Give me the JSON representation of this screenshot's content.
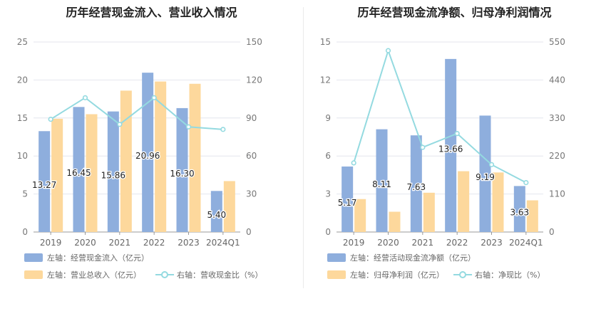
{
  "colors": {
    "bar1": "#8eaedd",
    "bar2": "#fdd89c",
    "line": "#94dae0"
  },
  "chart_data": [
    {
      "type": "bar",
      "title": "历年经营现金流入、营业收入情况",
      "categories": [
        "2019",
        "2020",
        "2021",
        "2022",
        "2023",
        "2024Q1"
      ],
      "ylim_left": [
        0,
        25
      ],
      "yticks_left": [
        "0",
        "5",
        "10",
        "15",
        "20",
        "25"
      ],
      "ylim_right": [
        0,
        150
      ],
      "yticks_right": [
        "0",
        "30",
        "60",
        "90",
        "120",
        "150"
      ],
      "series": [
        {
          "name": "左轴：经营现金流入（亿元）",
          "axis": "left",
          "kind": "bar",
          "values": [
            13.27,
            16.45,
            15.86,
            20.96,
            16.3,
            5.4
          ],
          "labels": [
            "13.27",
            "16.45",
            "15.86",
            "20.96",
            "16.30",
            "5.40"
          ]
        },
        {
          "name": "左轴：营业总收入（亿元）",
          "axis": "left",
          "kind": "bar",
          "values": [
            14.9,
            15.5,
            18.6,
            19.8,
            19.5,
            6.7
          ]
        },
        {
          "name": "右轴：营收现金比（%）",
          "axis": "right",
          "kind": "line",
          "values": [
            89,
            106,
            85,
            106,
            83,
            81
          ]
        }
      ],
      "legend_layout": [
        [
          0
        ],
        [
          1,
          2
        ]
      ]
    },
    {
      "type": "bar",
      "title": "历年经营现金流净额、归母净利润情况",
      "categories": [
        "2019",
        "2020",
        "2021",
        "2022",
        "2023",
        "2024Q1"
      ],
      "ylim_left": [
        0,
        15
      ],
      "yticks_left": [
        "0",
        "3",
        "6",
        "9",
        "12",
        "15"
      ],
      "ylim_right": [
        0,
        550
      ],
      "yticks_right": [
        "0",
        "110",
        "220",
        "330",
        "440",
        "550"
      ],
      "series": [
        {
          "name": "左轴：经营活动现金流净额（亿元）",
          "axis": "left",
          "kind": "bar",
          "values": [
            5.17,
            8.11,
            7.63,
            13.66,
            9.19,
            3.63
          ],
          "labels": [
            "5.17",
            "8.11",
            "7.63",
            "13.66",
            "9.19",
            "3.63"
          ]
        },
        {
          "name": "左轴：归母净利润（亿元）",
          "axis": "left",
          "kind": "bar",
          "values": [
            2.6,
            1.6,
            3.1,
            4.8,
            4.7,
            2.5
          ]
        },
        {
          "name": "右轴：净现比（%）",
          "axis": "right",
          "kind": "line",
          "values": [
            200,
            525,
            245,
            285,
            195,
            143
          ]
        }
      ],
      "legend_layout": [
        [
          0
        ],
        [
          1,
          2
        ]
      ]
    }
  ]
}
